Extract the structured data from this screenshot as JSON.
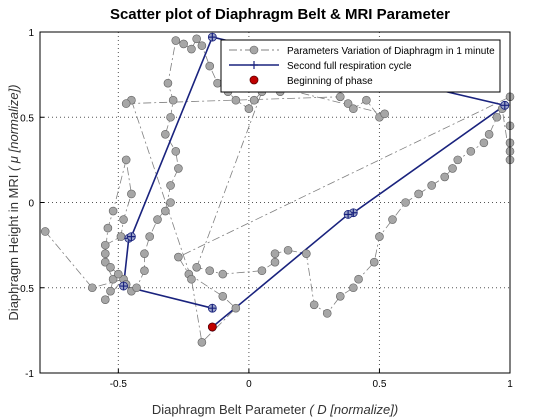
{
  "chart_data": {
    "type": "scatter",
    "title": "Scatter plot of Diaphragm Belt & MRI Parameter",
    "xlabel_main": "Diaphragm Belt Parameter",
    "xlabel_sym": "( D [normalize])",
    "ylabel_main": "Diaphragm Height in MRI",
    "ylabel_sym": "( μ [normalize])",
    "xlim": [
      -0.8,
      1.0
    ],
    "ylim": [
      -1.0,
      1.0
    ],
    "xticks": [
      "-0.5",
      "0",
      "0.5",
      "1"
    ],
    "xtick_values": [
      -0.5,
      0,
      0.5,
      1
    ],
    "yticks": [
      "-1",
      "-0.5",
      "0",
      "0.5",
      "1"
    ],
    "ytick_values": [
      -1,
      -0.5,
      0,
      0.5,
      1
    ],
    "grid": "dotted",
    "legend_position": "top-right",
    "colors": {
      "scatter_fill": "#a6a6a6",
      "scatter_line": "#808080",
      "cycle_line": "#1a237e",
      "start": "#c00000"
    },
    "series": [
      {
        "name": "Parameters Variation of Diaphragm in 1 minute",
        "style": "dash-dot gray with gray circles",
        "x": [
          -0.78,
          -0.6,
          -0.48,
          -0.55,
          -0.53,
          -0.52,
          -0.55,
          -0.55,
          -0.49,
          -0.48,
          -0.45,
          -0.47,
          -0.52,
          -0.54,
          -0.55,
          -0.53,
          -0.5,
          -0.47,
          -0.45,
          -0.43,
          -0.4,
          -0.4,
          -0.38,
          -0.35,
          -0.3,
          -0.32,
          -0.3,
          -0.27,
          -0.28,
          -0.32,
          -0.3,
          -0.29,
          -0.31,
          -0.28,
          -0.25,
          -0.22,
          -0.2,
          -0.18,
          -0.15,
          -0.12,
          -0.08,
          -0.05,
          0.0,
          0.02,
          0.05,
          -0.2,
          -0.15,
          -0.1,
          0.05,
          0.1,
          0.1,
          0.15,
          0.22,
          0.25,
          0.3,
          0.35,
          0.4,
          0.42,
          0.48,
          0.5,
          0.55,
          0.6,
          0.65,
          0.7,
          0.75,
          0.78,
          0.8,
          0.85,
          0.9,
          0.92,
          0.95,
          0.97,
          1.0,
          1.0,
          1.0,
          1.0,
          1.0,
          -0.27,
          -0.23,
          -0.1,
          -0.05,
          -0.18,
          -0.22,
          -0.45,
          -0.47,
          0.35,
          0.38,
          0.4,
          0.45,
          0.5,
          0.52,
          0.1,
          0.12,
          0.18,
          0.22
        ],
        "y": [
          -0.17,
          -0.5,
          -0.45,
          -0.57,
          -0.52,
          -0.45,
          -0.35,
          -0.25,
          -0.2,
          -0.1,
          0.05,
          0.25,
          -0.05,
          -0.15,
          -0.3,
          -0.38,
          -0.42,
          -0.48,
          -0.52,
          -0.5,
          -0.4,
          -0.3,
          -0.2,
          -0.1,
          0.0,
          -0.05,
          0.1,
          0.2,
          0.3,
          0.4,
          0.5,
          0.6,
          0.7,
          0.95,
          0.93,
          0.9,
          0.96,
          0.92,
          0.8,
          0.7,
          0.65,
          0.6,
          0.55,
          0.6,
          0.65,
          -0.38,
          -0.4,
          -0.42,
          -0.4,
          -0.35,
          -0.3,
          -0.28,
          -0.3,
          -0.6,
          -0.65,
          -0.55,
          -0.5,
          -0.45,
          -0.35,
          -0.2,
          -0.1,
          0.0,
          0.05,
          0.1,
          0.15,
          0.2,
          0.25,
          0.3,
          0.35,
          0.4,
          0.5,
          0.55,
          0.25,
          0.3,
          0.35,
          0.45,
          0.62,
          -0.32,
          -0.42,
          -0.55,
          -0.62,
          -0.82,
          -0.45,
          0.6,
          0.58,
          0.62,
          0.58,
          0.55,
          0.6,
          0.5,
          0.52,
          0.68,
          0.65,
          0.72,
          0.7
        ]
      },
      {
        "name": "Second full respiration cycle",
        "style": "solid navy with plus markers",
        "x": [
          -0.14,
          -0.48,
          -0.46,
          -0.45,
          -0.14,
          0.98,
          0.98,
          0.4,
          0.38,
          -0.14
        ],
        "y": [
          -0.62,
          -0.49,
          -0.21,
          -0.2,
          0.97,
          0.57,
          0.57,
          -0.06,
          -0.07,
          -0.73
        ]
      },
      {
        "name": "Beginning of phase",
        "style": "red circle",
        "x": [
          -0.14
        ],
        "y": [
          -0.73
        ]
      }
    ]
  }
}
